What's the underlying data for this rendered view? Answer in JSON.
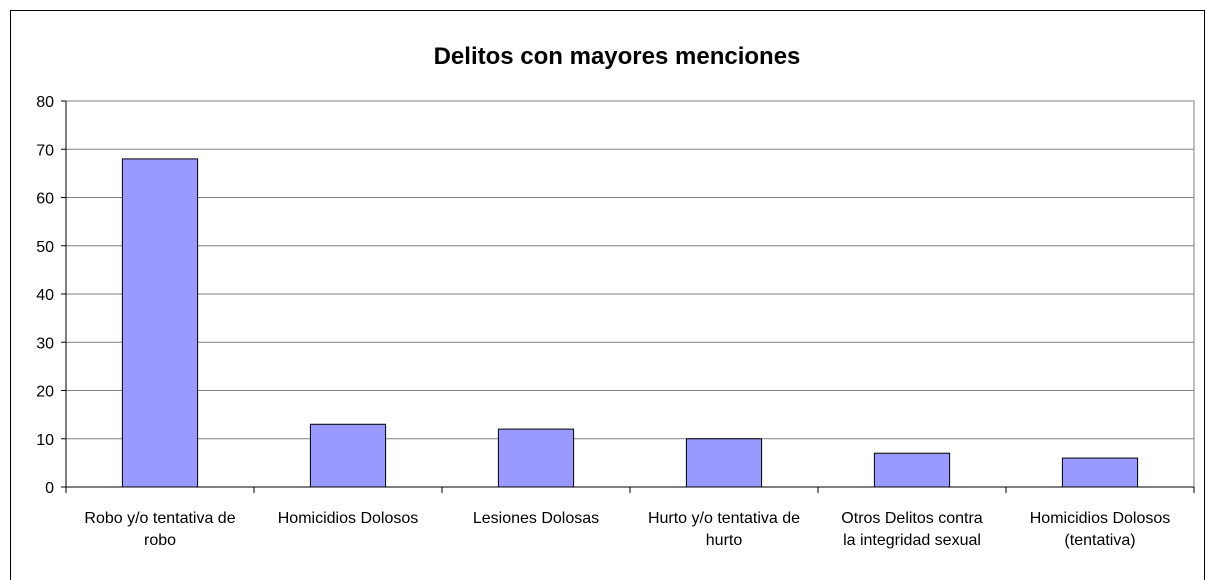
{
  "chart_data": {
    "type": "bar",
    "title": "Delitos con mayores menciones",
    "xlabel": "",
    "ylabel": "",
    "ylim": [
      0,
      80
    ],
    "yticks": [
      0,
      10,
      20,
      30,
      40,
      50,
      60,
      70,
      80
    ],
    "grid": true,
    "legend": "none",
    "bar_color": "#9999ff",
    "categories": [
      [
        "Robo y/o tentativa de",
        "robo"
      ],
      [
        "Homicidios Dolosos"
      ],
      [
        "Lesiones Dolosas"
      ],
      [
        "Hurto y/o tentativa de",
        "hurto"
      ],
      [
        "Otros Delitos contra",
        "la integridad sexual"
      ],
      [
        "Homicidios Dolosos",
        "(tentativa)"
      ]
    ],
    "values": [
      68,
      13,
      12,
      10,
      7,
      6
    ]
  }
}
